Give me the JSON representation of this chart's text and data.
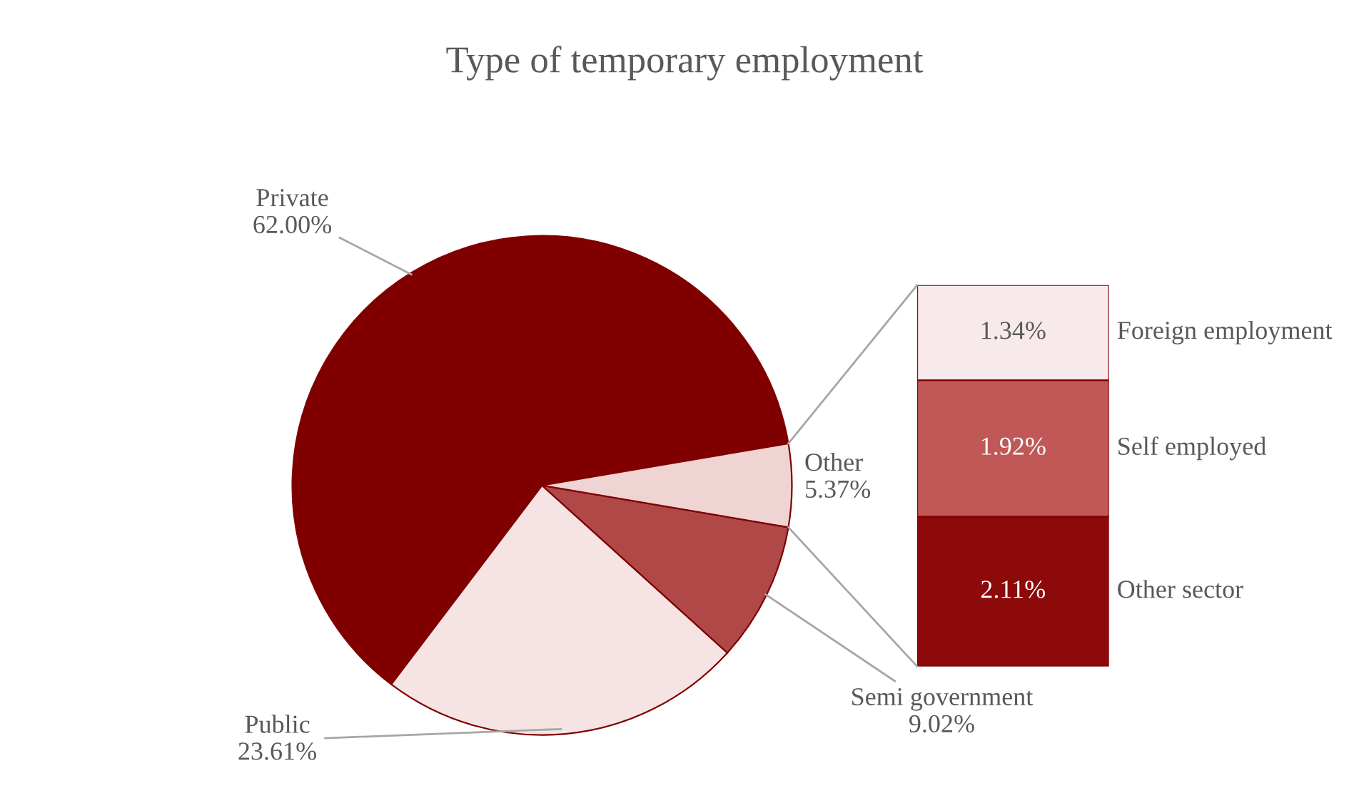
{
  "chart_data": [
    {
      "type": "pie",
      "title": "Type of temporary employment",
      "categories": [
        "Private",
        "Public",
        "Semi government",
        "Other"
      ],
      "values": [
        62.0,
        23.61,
        9.02,
        5.37
      ],
      "value_labels": [
        "62.00%",
        "23.61%",
        "9.02%",
        "5.37%"
      ],
      "colors": [
        "#800000",
        "#f6e4e4",
        "#b04848",
        "#f0d4d4"
      ]
    },
    {
      "type": "bar",
      "stacked": true,
      "categories": [
        null
      ],
      "series": [
        {
          "name": "Other sector",
          "color": "#8c0a0a",
          "values": [
            2.11
          ],
          "value_labels": [
            "2.11%"
          ]
        },
        {
          "name": "Self employed",
          "color": "#c05858",
          "values": [
            1.92
          ],
          "value_labels": [
            "1.92%"
          ]
        },
        {
          "name": "Foreign employment",
          "color": "#f8eaea",
          "values": [
            1.34
          ],
          "value_labels": [
            "1.34%"
          ]
        }
      ]
    }
  ]
}
